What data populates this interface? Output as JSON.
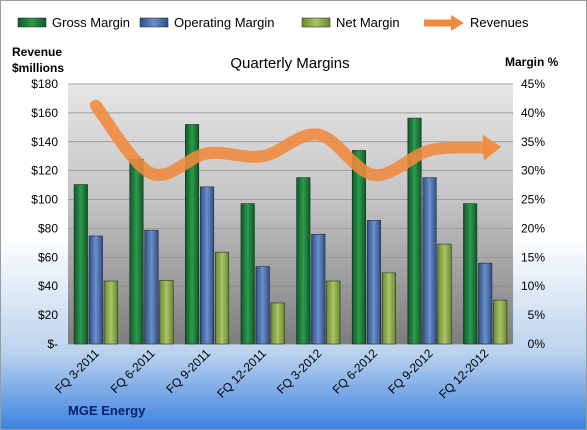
{
  "chart_data": {
    "type": "bar",
    "title": "Quarterly Margins",
    "categories": [
      "FQ 3-2011",
      "FQ 6-2011",
      "FQ 9-2011",
      "FQ 12-2011",
      "FQ 3-2012",
      "FQ 6-2012",
      "FQ 9-2012",
      "FQ 12-2012"
    ],
    "left_axis": {
      "label_line1": "Revenue",
      "label_line2": "$millions",
      "min": 0,
      "max": 180,
      "step": 20,
      "tick_labels": [
        "$-",
        "$20",
        "$40",
        "$60",
        "$80",
        "$100",
        "$120",
        "$140",
        "$160",
        "$180"
      ]
    },
    "right_axis": {
      "label": "Margin %",
      "min": 0,
      "max": 45,
      "step": 5,
      "tick_labels": [
        "0%",
        "5%",
        "10%",
        "15%",
        "20%",
        "25%",
        "30%",
        "35%",
        "40%",
        "45%"
      ]
    },
    "series": [
      {
        "name": "Gross Margin",
        "kind": "bar",
        "axis": "right",
        "color": "#1e7a3a",
        "values": [
          27.6,
          32.0,
          38.0,
          24.3,
          28.8,
          33.5,
          39.1,
          24.3
        ]
      },
      {
        "name": "Operating Margin",
        "kind": "bar",
        "axis": "right",
        "color": "#4a6fae",
        "values": [
          18.7,
          19.7,
          27.2,
          13.4,
          19.0,
          21.4,
          28.8,
          14.0
        ]
      },
      {
        "name": "Net Margin",
        "kind": "bar",
        "axis": "right",
        "color": "#8fac4a",
        "values": [
          10.9,
          11.0,
          15.9,
          7.1,
          10.9,
          12.3,
          17.3,
          7.6
        ]
      },
      {
        "name": "Revenues",
        "kind": "line",
        "axis": "left",
        "color": "#f08a3c",
        "values": [
          165,
          118,
          132,
          130,
          145,
          117,
          134,
          136
        ]
      }
    ],
    "source_label": "MGE Energy",
    "grid": true,
    "legend_position": "top"
  }
}
